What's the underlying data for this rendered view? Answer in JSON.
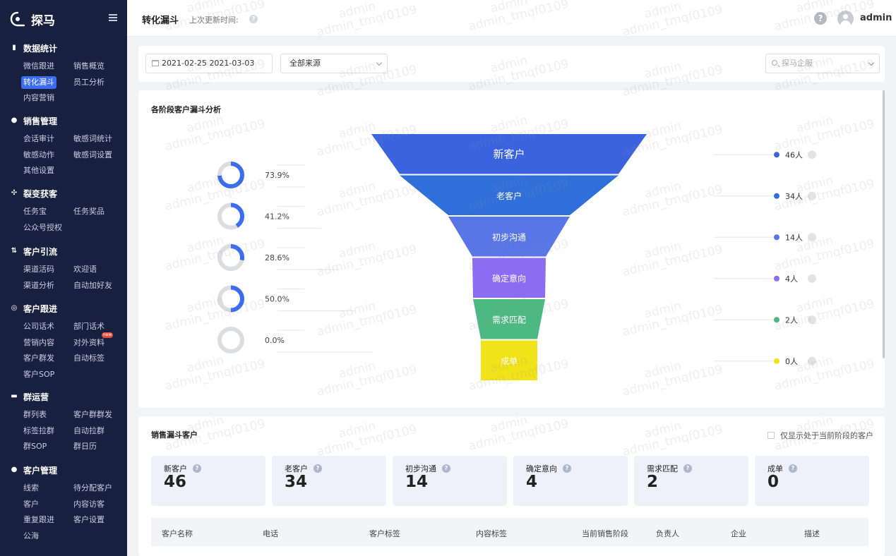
{
  "app": {
    "name": "探马",
    "user": "admin"
  },
  "sidebar": {
    "groups": [
      {
        "title": "数据统计",
        "icon": "bar-chart-icon",
        "items": [
          "微信跟进",
          "销售概览",
          "转化漏斗",
          "员工分析",
          "内容营销"
        ],
        "active": "转化漏斗"
      },
      {
        "title": "销售管理",
        "icon": "user-icon",
        "items": [
          "会话审计",
          "敏感词统计",
          "敏感动作",
          "敏感词设置",
          "其他设置"
        ]
      },
      {
        "title": "裂变获客",
        "icon": "share-icon",
        "items": [
          "任务宝",
          "任务奖品",
          "公众号授权"
        ]
      },
      {
        "title": "客户引流",
        "icon": "flow-icon",
        "items": [
          "渠道活码",
          "欢迎语",
          "渠道分析",
          "自动加好友"
        ]
      },
      {
        "title": "客户跟进",
        "icon": "target-icon",
        "items": [
          "公司话术",
          "部门话术",
          "营销内容",
          "对外资料",
          "客户群发",
          "自动标签",
          "客户SOP"
        ],
        "badge": "new"
      },
      {
        "title": "群运营",
        "icon": "chat-icon",
        "items": [
          "群列表",
          "客户群群发",
          "标签拉群",
          "自动拉群",
          "群SOP",
          "群日历"
        ]
      },
      {
        "title": "客户管理",
        "icon": "users-icon",
        "items": [
          "线索",
          "待分配客户",
          "客户",
          "内容访客",
          "重复跟进",
          "客户设置",
          "公海"
        ]
      }
    ]
  },
  "header": {
    "title": "转化漏斗",
    "last_update_label": "上次更新时间:"
  },
  "filters": {
    "date_start": "2021-02-25",
    "date_sep": "",
    "date_end": "2021-03-03",
    "source": "全部来源",
    "company_placeholder": "探马企服"
  },
  "funnel_card": {
    "title": "各阶段客户漏斗分析"
  },
  "chart_data": {
    "type": "funnel",
    "stages": [
      "新客户",
      "老客户",
      "初步沟通",
      "确定意向",
      "需求匹配",
      "成单"
    ],
    "counts": [
      46,
      34,
      14,
      4,
      2,
      0
    ],
    "count_labels": [
      "46人",
      "34人",
      "14人",
      "4人",
      "2人",
      "0人"
    ],
    "conversion_rates": [
      73.9,
      41.2,
      28.6,
      50.0,
      0.0
    ],
    "conversion_labels": [
      "73.9%",
      "41.2%",
      "28.6%",
      "50.0%",
      "0.0%"
    ],
    "colors": [
      "#3b63e0",
      "#2f6fd9",
      "#5876e6",
      "#8b6cf2",
      "#4cb882",
      "#f1e319"
    ]
  },
  "customers_card": {
    "title": "销售漏斗客户",
    "only_current_stage": "仅显示处于当前阶段的客户",
    "stats": [
      {
        "label": "新客户",
        "value": "46"
      },
      {
        "label": "老客户",
        "value": "34"
      },
      {
        "label": "初步沟通",
        "value": "14"
      },
      {
        "label": "确定意向",
        "value": "4"
      },
      {
        "label": "需求匹配",
        "value": "2"
      },
      {
        "label": "成单",
        "value": "0"
      }
    ],
    "columns": [
      "客户名称",
      "电话",
      "客户标签",
      "内容标签",
      "当前销售阶段",
      "负责人",
      "企业",
      "描述"
    ]
  },
  "watermark": {
    "line1": "admin",
    "line2": "admin_tmqf0109"
  }
}
